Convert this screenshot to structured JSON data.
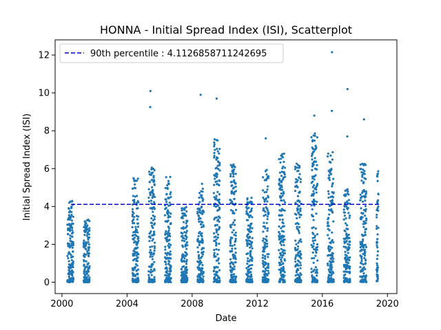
{
  "chart_data": {
    "type": "scatter",
    "title": "HONNA - Initial Spread Index (ISI), Scatterplot",
    "xlabel": "Date",
    "ylabel": "Initial Spread Index (ISI)",
    "xlim": [
      "1999-08-01",
      "2020-08-01"
    ],
    "ylim": [
      -0.6,
      12.8
    ],
    "x_ticks": [
      "2000",
      "2004",
      "2008",
      "2012",
      "2016",
      "2020"
    ],
    "y_ticks": [
      "0",
      "2",
      "4",
      "6",
      "8",
      "10",
      "12"
    ],
    "grid": false,
    "legend_position": "top-left",
    "point_color": "#1f77b4",
    "threshold_color": "#0000cc",
    "threshold": {
      "label": "90th percentile : 4.1126858711242695",
      "value": 4.1126858711242695
    },
    "seasons": [
      {
        "start": "2000-05-01",
        "end": "2000-09-15",
        "max": 4.3
      },
      {
        "start": "2001-05-01",
        "end": "2001-09-15",
        "max": 3.4
      },
      {
        "start": "2004-05-01",
        "end": "2004-09-15",
        "max": 5.5
      },
      {
        "start": "2005-05-01",
        "end": "2005-09-15",
        "max": 6.1
      },
      {
        "start": "2006-05-01",
        "end": "2006-09-15",
        "max": 5.6
      },
      {
        "start": "2007-05-01",
        "end": "2007-09-15",
        "max": 4.0
      },
      {
        "start": "2008-05-01",
        "end": "2008-09-15",
        "max": 5.2
      },
      {
        "start": "2009-05-01",
        "end": "2009-09-15",
        "max": 7.6
      },
      {
        "start": "2010-05-01",
        "end": "2010-09-15",
        "max": 6.3
      },
      {
        "start": "2011-05-01",
        "end": "2011-09-15",
        "max": 4.5
      },
      {
        "start": "2012-05-01",
        "end": "2012-09-15",
        "max": 6.0
      },
      {
        "start": "2013-05-01",
        "end": "2013-09-15",
        "max": 6.8
      },
      {
        "start": "2014-05-01",
        "end": "2014-09-15",
        "max": 6.3
      },
      {
        "start": "2015-05-01",
        "end": "2015-09-15",
        "max": 7.9
      },
      {
        "start": "2016-05-01",
        "end": "2016-09-15",
        "max": 6.9
      },
      {
        "start": "2017-05-01",
        "end": "2017-09-15",
        "max": 5.0
      },
      {
        "start": "2018-05-01",
        "end": "2018-09-15",
        "max": 6.4
      },
      {
        "start": "2019-05-01",
        "end": "2019-06-15",
        "max": 6.3
      }
    ],
    "outliers": [
      {
        "x": "2005-06-10",
        "y": 10.1
      },
      {
        "x": "2005-06-05",
        "y": 9.25
      },
      {
        "x": "2008-07-10",
        "y": 9.9
      },
      {
        "x": "2009-07-05",
        "y": 9.7
      },
      {
        "x": "2012-07-10",
        "y": 7.6
      },
      {
        "x": "2015-07-05",
        "y": 8.8
      },
      {
        "x": "2016-08-05",
        "y": 12.15
      },
      {
        "x": "2016-08-01",
        "y": 9.05
      },
      {
        "x": "2017-07-20",
        "y": 10.2
      },
      {
        "x": "2017-07-15",
        "y": 7.7
      },
      {
        "x": "2018-07-25",
        "y": 8.6
      }
    ]
  }
}
